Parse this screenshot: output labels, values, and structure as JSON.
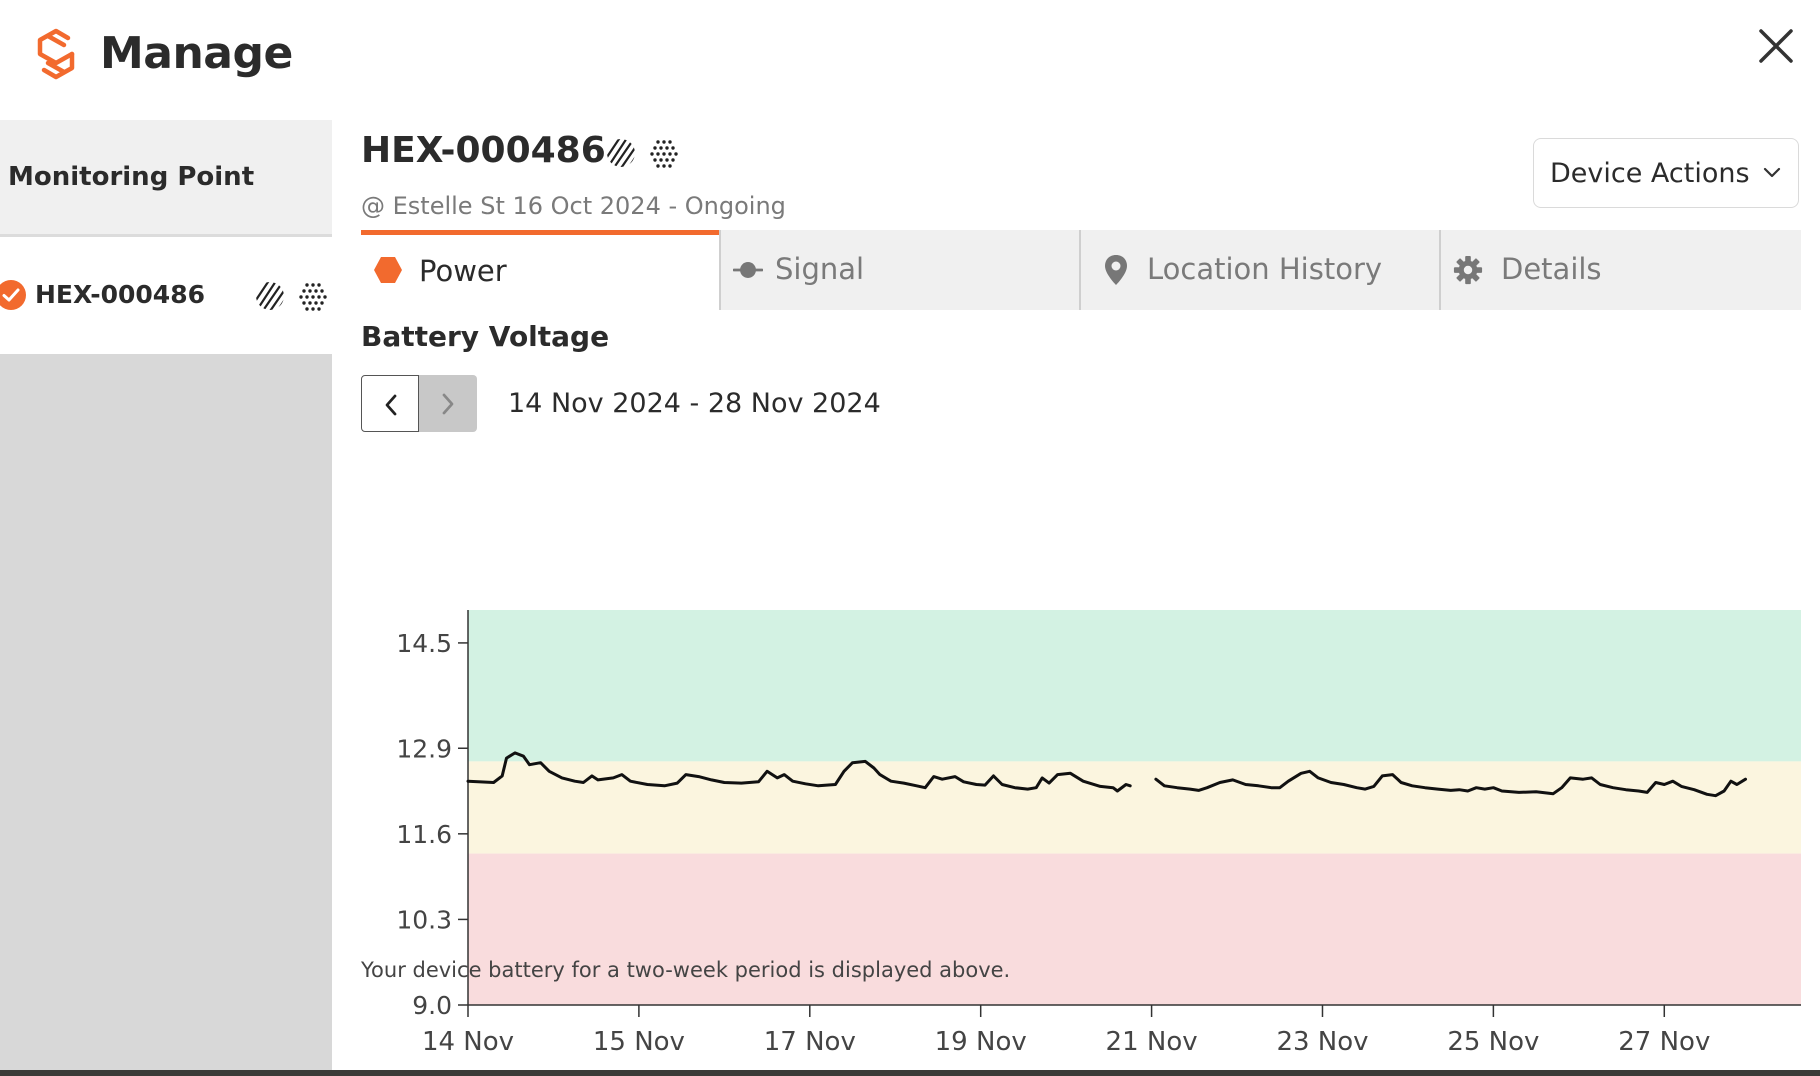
{
  "header": {
    "title": "Manage"
  },
  "colors": {
    "accent": "#f26a2e",
    "good_zone": "#d3f2e3",
    "warn_zone": "#fbf5df",
    "bad_zone": "#f9dcdd"
  },
  "icons": {
    "logo": "brand-logo",
    "close": "close-icon",
    "power_tab": "hexagon-icon",
    "signal_tab": "signal-icon",
    "location_tab": "map-pin-icon",
    "details_tab": "gear-icon",
    "device_badges": [
      "hatched-icon",
      "dotted-icon"
    ]
  },
  "sidebar": {
    "header_label": "Monitoring Point",
    "items": [
      {
        "label": "HEX-000486",
        "selected": true
      }
    ]
  },
  "device": {
    "title": "HEX-000486",
    "subtitle": "@ Estelle St 16 Oct 2024 - Ongoing",
    "actions_label": "Device Actions"
  },
  "tabs": [
    {
      "label": "Power",
      "active": true
    },
    {
      "label": "Signal",
      "active": false
    },
    {
      "label": "Location History",
      "active": false
    },
    {
      "label": "Details",
      "active": false
    }
  ],
  "power": {
    "section_title": "Battery Voltage",
    "date_range": "14 Nov 2024 - 28 Nov 2024",
    "footnote": "Your device battery for a two-week period is displayed above."
  },
  "chart_data": {
    "type": "line",
    "title": "Battery Voltage",
    "xlabel": "",
    "ylabel": "",
    "x_range": [
      0,
      15.6
    ],
    "ylim": [
      9.0,
      15.0
    ],
    "y_ticks": [
      9.0,
      10.3,
      11.6,
      12.9,
      14.5
    ],
    "y_tick_labels": [
      "9.0",
      "10.3",
      "11.6",
      "12.9",
      "14.5"
    ],
    "x_ticks": [
      0,
      2,
      4,
      6,
      8,
      10,
      12,
      14
    ],
    "x_tick_labels": [
      "14 Nov",
      "15 Nov",
      "17 Nov",
      "19 Nov",
      "21 Nov",
      "23 Nov",
      "25 Nov",
      "27 Nov"
    ],
    "zones": [
      {
        "from": 12.7,
        "to": 15.0,
        "color": "#d3f2e3"
      },
      {
        "from": 11.3,
        "to": 12.7,
        "color": "#fbf5df"
      },
      {
        "from": 9.0,
        "to": 11.3,
        "color": "#f9dcdd"
      }
    ],
    "grid": false,
    "series": [
      {
        "segments": [
          [
            [
              0.0,
              12.4
            ],
            [
              0.3,
              12.38
            ],
            [
              0.4,
              12.48
            ],
            [
              0.45,
              12.75
            ],
            [
              0.55,
              12.83
            ],
            [
              0.65,
              12.78
            ],
            [
              0.72,
              12.65
            ],
            [
              0.85,
              12.68
            ],
            [
              0.95,
              12.55
            ],
            [
              1.1,
              12.45
            ],
            [
              1.25,
              12.4
            ],
            [
              1.35,
              12.38
            ],
            [
              1.45,
              12.48
            ],
            [
              1.52,
              12.42
            ],
            [
              1.7,
              12.45
            ],
            [
              1.8,
              12.5
            ],
            [
              1.9,
              12.4
            ],
            [
              2.1,
              12.35
            ],
            [
              2.3,
              12.33
            ],
            [
              2.45,
              12.37
            ],
            [
              2.55,
              12.5
            ],
            [
              2.7,
              12.47
            ],
            [
              2.85,
              12.42
            ],
            [
              3.0,
              12.38
            ],
            [
              3.2,
              12.37
            ],
            [
              3.4,
              12.39
            ],
            [
              3.5,
              12.55
            ],
            [
              3.62,
              12.45
            ],
            [
              3.7,
              12.5
            ],
            [
              3.8,
              12.4
            ],
            [
              3.95,
              12.36
            ],
            [
              4.1,
              12.33
            ],
            [
              4.3,
              12.35
            ],
            [
              4.4,
              12.55
            ],
            [
              4.5,
              12.68
            ],
            [
              4.65,
              12.7
            ],
            [
              4.75,
              12.6
            ],
            [
              4.82,
              12.5
            ],
            [
              4.95,
              12.4
            ],
            [
              5.1,
              12.37
            ],
            [
              5.25,
              12.33
            ],
            [
              5.35,
              12.3
            ],
            [
              5.45,
              12.47
            ],
            [
              5.55,
              12.43
            ],
            [
              5.7,
              12.47
            ],
            [
              5.8,
              12.39
            ],
            [
              5.95,
              12.35
            ],
            [
              6.05,
              12.34
            ],
            [
              6.15,
              12.48
            ],
            [
              6.25,
              12.35
            ],
            [
              6.4,
              12.3
            ],
            [
              6.55,
              12.28
            ],
            [
              6.65,
              12.3
            ],
            [
              6.72,
              12.45
            ],
            [
              6.8,
              12.37
            ],
            [
              6.9,
              12.5
            ],
            [
              7.05,
              12.52
            ],
            [
              7.2,
              12.4
            ],
            [
              7.4,
              12.32
            ],
            [
              7.55,
              12.3
            ],
            [
              7.6,
              12.25
            ],
            [
              7.7,
              12.35
            ],
            [
              7.75,
              12.33
            ]
          ],
          [
            [
              8.05,
              12.43
            ],
            [
              8.15,
              12.33
            ],
            [
              8.3,
              12.3
            ],
            [
              8.45,
              12.28
            ],
            [
              8.55,
              12.26
            ],
            [
              8.65,
              12.3
            ],
            [
              8.8,
              12.38
            ],
            [
              8.95,
              12.42
            ],
            [
              9.1,
              12.35
            ],
            [
              9.25,
              12.33
            ],
            [
              9.4,
              12.3
            ],
            [
              9.5,
              12.3
            ],
            [
              9.6,
              12.4
            ],
            [
              9.75,
              12.52
            ],
            [
              9.85,
              12.55
            ],
            [
              9.95,
              12.45
            ],
            [
              10.1,
              12.38
            ],
            [
              10.25,
              12.35
            ],
            [
              10.4,
              12.3
            ],
            [
              10.5,
              12.28
            ],
            [
              10.6,
              12.32
            ],
            [
              10.7,
              12.48
            ],
            [
              10.82,
              12.5
            ],
            [
              10.92,
              12.38
            ],
            [
              11.05,
              12.33
            ],
            [
              11.2,
              12.3
            ],
            [
              11.35,
              12.28
            ],
            [
              11.5,
              12.26
            ],
            [
              11.6,
              12.27
            ],
            [
              11.7,
              12.25
            ],
            [
              11.8,
              12.3
            ],
            [
              11.9,
              12.28
            ],
            [
              12.0,
              12.3
            ],
            [
              12.1,
              12.25
            ],
            [
              12.3,
              12.23
            ],
            [
              12.5,
              12.24
            ],
            [
              12.7,
              12.21
            ],
            [
              12.8,
              12.3
            ],
            [
              12.9,
              12.45
            ],
            [
              13.05,
              12.43
            ],
            [
              13.15,
              12.45
            ],
            [
              13.25,
              12.35
            ],
            [
              13.4,
              12.3
            ],
            [
              13.55,
              12.27
            ],
            [
              13.7,
              12.25
            ],
            [
              13.8,
              12.23
            ],
            [
              13.9,
              12.38
            ],
            [
              14.0,
              12.35
            ],
            [
              14.1,
              12.4
            ],
            [
              14.2,
              12.32
            ],
            [
              14.35,
              12.27
            ],
            [
              14.5,
              12.2
            ],
            [
              14.6,
              12.18
            ],
            [
              14.7,
              12.25
            ],
            [
              14.78,
              12.4
            ],
            [
              14.85,
              12.35
            ],
            [
              14.95,
              12.43
            ]
          ]
        ]
      }
    ]
  }
}
